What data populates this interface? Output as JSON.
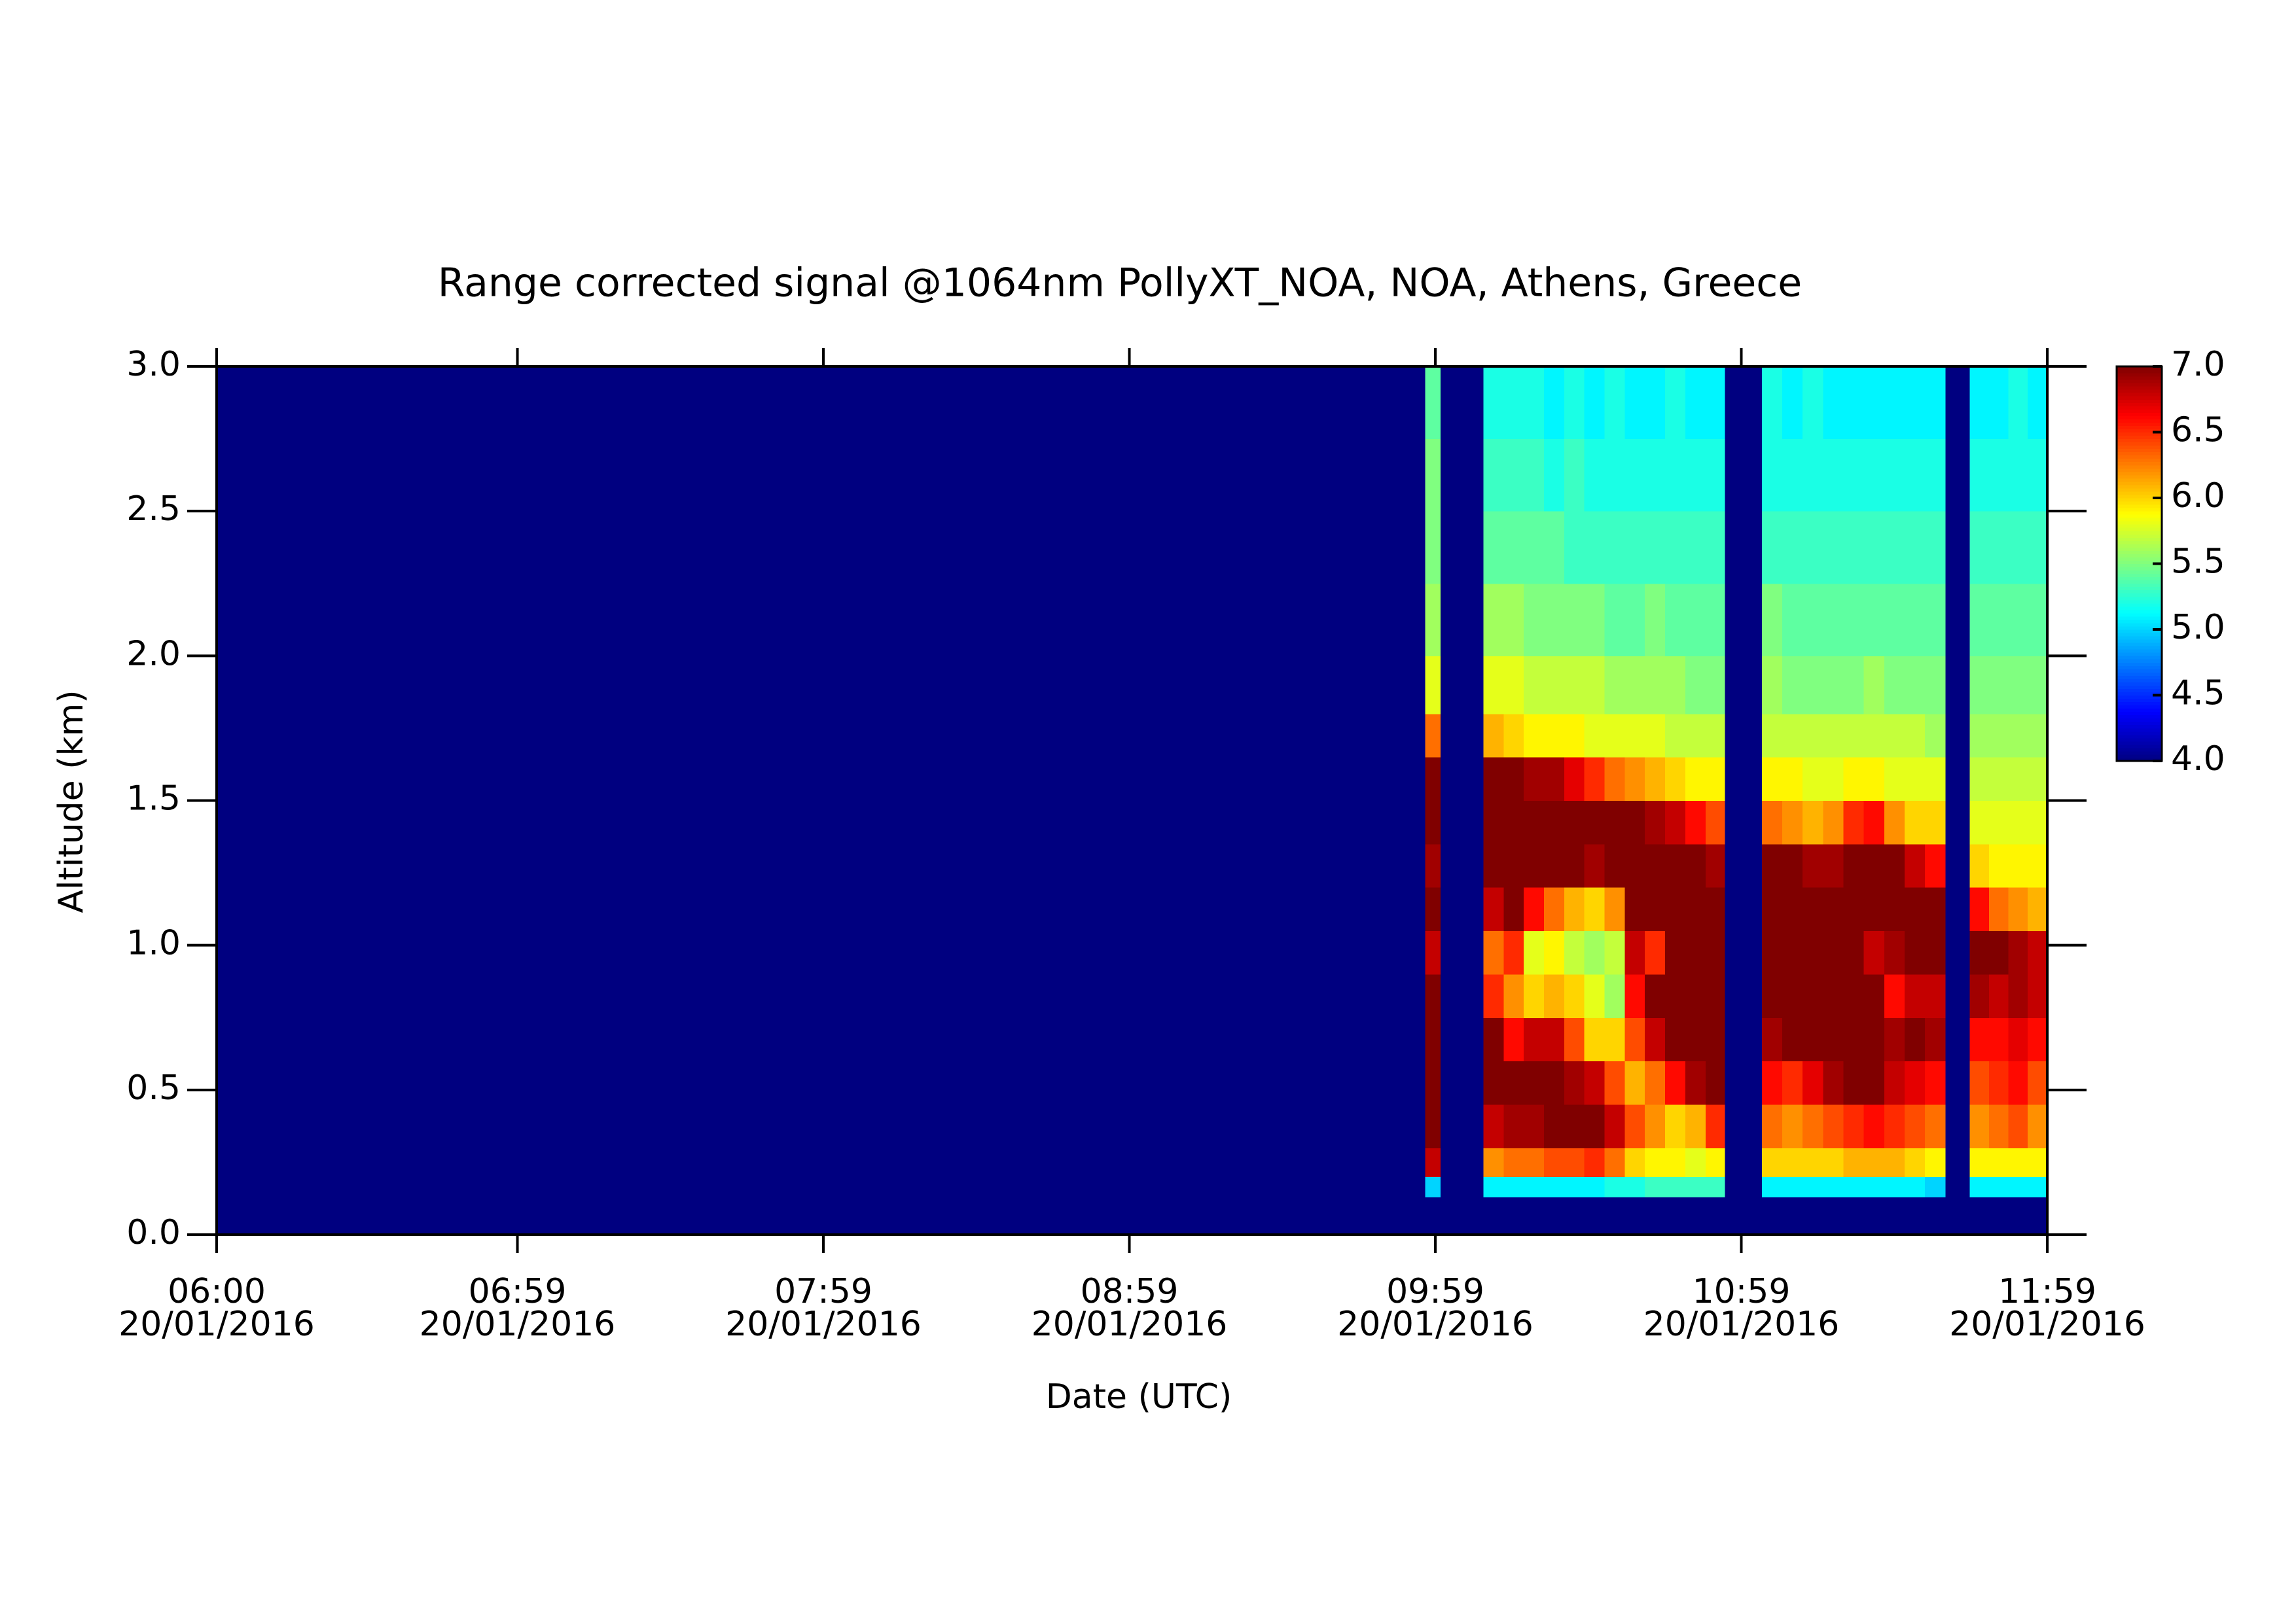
{
  "chart_data": {
    "type": "heatmap",
    "title": "Range corrected signal @1064nm  PollyXT_NOA, NOA, Athens, Greece",
    "xlabel": "Date (UTC)",
    "ylabel": "Altitude (km)",
    "colorscale": "jet",
    "zlim": [
      4.0,
      7.0
    ],
    "colorbar_ticks": [
      {
        "value": 4.0,
        "label": "4.0"
      },
      {
        "value": 4.5,
        "label": "4.5"
      },
      {
        "value": 5.0,
        "label": "5.0"
      },
      {
        "value": 5.5,
        "label": "5.5"
      },
      {
        "value": 6.0,
        "label": "6.0"
      },
      {
        "value": 6.5,
        "label": "6.5"
      },
      {
        "value": 7.0,
        "label": "7.0"
      }
    ],
    "xlim": [
      6.0,
      11.983
    ],
    "xticks": [
      {
        "value": 6.0,
        "label": "06:00",
        "date": "20/01/2016"
      },
      {
        "value": 6.983,
        "label": "06:59",
        "date": "20/01/2016"
      },
      {
        "value": 7.983,
        "label": "07:59",
        "date": "20/01/2016"
      },
      {
        "value": 8.983,
        "label": "08:59",
        "date": "20/01/2016"
      },
      {
        "value": 9.983,
        "label": "09:59",
        "date": "20/01/2016"
      },
      {
        "value": 10.983,
        "label": "10:59",
        "date": "20/01/2016"
      },
      {
        "value": 11.983,
        "label": "11:59",
        "date": "20/01/2016"
      }
    ],
    "ylim": [
      0.0,
      3.0
    ],
    "yticks": [
      {
        "value": 0.0,
        "label": "0.0"
      },
      {
        "value": 0.5,
        "label": "0.5"
      },
      {
        "value": 1.0,
        "label": "1.0"
      },
      {
        "value": 1.5,
        "label": "1.5"
      },
      {
        "value": 2.0,
        "label": "2.0"
      },
      {
        "value": 2.5,
        "label": "2.5"
      },
      {
        "value": 3.0,
        "label": "3.0"
      }
    ],
    "x_edges": [
      6.0,
      9.95,
      10.0,
      10.14,
      10.206,
      10.272,
      10.338,
      10.404,
      10.47,
      10.536,
      10.602,
      10.668,
      10.734,
      10.8,
      10.866,
      10.93,
      11.05,
      11.117,
      11.183,
      11.25,
      11.317,
      11.383,
      11.45,
      11.517,
      11.583,
      11.65,
      11.73,
      11.793,
      11.856,
      11.919,
      11.983
    ],
    "y_edges": [
      0.0,
      0.13,
      0.2,
      0.3,
      0.45,
      0.6,
      0.75,
      0.9,
      1.05,
      1.2,
      1.35,
      1.5,
      1.65,
      1.8,
      2.0,
      2.25,
      2.5,
      2.75,
      3.0
    ],
    "values": [
      [
        4.0,
        4.0,
        4.0,
        4.0,
        4.0,
        4.0,
        4.0,
        4.0,
        4.0,
        4.0,
        4.0,
        4.0,
        4.0,
        4.0,
        4.0,
        4.0,
        4.0,
        4.0
      ],
      [
        4.0,
        5.0,
        6.8,
        7.0,
        7.0,
        7.0,
        7.0,
        6.8,
        7.0,
        6.9,
        7.0,
        7.0,
        6.3,
        5.8,
        5.6,
        5.5,
        5.5,
        5.4
      ],
      [
        4.0,
        4.0,
        4.0,
        4.0,
        4.0,
        4.0,
        4.0,
        4.0,
        4.0,
        4.0,
        4.0,
        4.0,
        4.0,
        4.0,
        4.0,
        4.0,
        4.0,
        4.0
      ],
      [
        4.0,
        5.1,
        6.2,
        6.8,
        7.0,
        7.0,
        6.5,
        6.3,
        6.8,
        7.0,
        7.0,
        7.0,
        6.1,
        5.8,
        5.6,
        5.4,
        5.3,
        5.2
      ],
      [
        4.0,
        5.1,
        6.3,
        6.9,
        7.0,
        6.6,
        6.2,
        6.5,
        7.0,
        7.0,
        7.0,
        7.0,
        6.0,
        5.8,
        5.6,
        5.4,
        5.3,
        5.2
      ],
      [
        4.0,
        5.1,
        6.3,
        6.9,
        7.0,
        6.8,
        6.0,
        5.8,
        6.6,
        7.0,
        7.0,
        6.9,
        5.9,
        5.7,
        5.5,
        5.4,
        5.3,
        5.2
      ],
      [
        4.0,
        5.1,
        6.4,
        7.0,
        7.0,
        6.8,
        6.1,
        5.9,
        6.3,
        7.0,
        7.0,
        6.9,
        5.9,
        5.7,
        5.5,
        5.4,
        5.2,
        5.1
      ],
      [
        4.0,
        5.1,
        6.4,
        7.0,
        6.9,
        6.4,
        6.0,
        5.7,
        6.1,
        7.0,
        7.0,
        6.7,
        5.9,
        5.7,
        5.5,
        5.3,
        5.3,
        5.2
      ],
      [
        4.0,
        5.1,
        6.5,
        7.0,
        6.8,
        6.0,
        5.8,
        5.6,
        6.0,
        6.9,
        7.0,
        6.5,
        5.8,
        5.7,
        5.5,
        5.3,
        5.2,
        5.1
      ],
      [
        4.0,
        5.2,
        6.3,
        6.8,
        6.4,
        6.0,
        5.6,
        5.7,
        6.2,
        7.0,
        7.0,
        6.3,
        5.8,
        5.6,
        5.4,
        5.3,
        5.2,
        5.2
      ],
      [
        4.0,
        5.2,
        6.0,
        6.4,
        6.1,
        6.4,
        6.6,
        6.8,
        7.0,
        7.0,
        7.0,
        6.2,
        5.8,
        5.6,
        5.4,
        5.3,
        5.2,
        5.1
      ],
      [
        4.0,
        5.3,
        5.9,
        6.2,
        6.3,
        6.8,
        7.0,
        6.5,
        7.0,
        7.0,
        6.9,
        6.1,
        5.8,
        5.6,
        5.5,
        5.3,
        5.2,
        5.1
      ],
      [
        4.0,
        5.3,
        5.9,
        6.0,
        6.6,
        7.0,
        7.0,
        7.0,
        7.0,
        7.0,
        6.8,
        6.0,
        5.7,
        5.6,
        5.4,
        5.3,
        5.2,
        5.2
      ],
      [
        4.0,
        5.3,
        5.8,
        6.1,
        6.9,
        7.0,
        7.0,
        7.0,
        7.0,
        7.0,
        6.6,
        5.9,
        5.7,
        5.5,
        5.4,
        5.3,
        5.2,
        5.1
      ],
      [
        4.0,
        5.3,
        5.9,
        6.5,
        7.0,
        7.0,
        7.0,
        7.0,
        7.0,
        6.9,
        6.4,
        5.9,
        5.7,
        5.5,
        5.4,
        5.3,
        5.2,
        5.1
      ],
      [
        4.0,
        4.0,
        4.0,
        4.0,
        4.0,
        4.0,
        4.0,
        4.0,
        4.0,
        4.0,
        4.0,
        4.0,
        4.0,
        4.0,
        4.0,
        4.0,
        4.0,
        4.0
      ],
      [
        4.0,
        5.1,
        6.0,
        6.3,
        6.6,
        6.9,
        7.0,
        7.0,
        7.0,
        7.0,
        6.3,
        5.9,
        5.7,
        5.6,
        5.5,
        5.3,
        5.2,
        5.2
      ],
      [
        4.0,
        5.1,
        6.0,
        6.2,
        6.5,
        7.0,
        7.0,
        7.0,
        7.0,
        7.0,
        6.2,
        5.9,
        5.7,
        5.5,
        5.4,
        5.3,
        5.2,
        5.1
      ],
      [
        4.0,
        5.1,
        6.0,
        6.3,
        6.7,
        7.0,
        7.0,
        7.0,
        7.0,
        6.9,
        6.1,
        5.8,
        5.7,
        5.5,
        5.4,
        5.3,
        5.2,
        5.2
      ],
      [
        4.0,
        5.1,
        6.0,
        6.4,
        6.9,
        7.0,
        7.0,
        7.0,
        7.0,
        6.9,
        6.2,
        5.8,
        5.7,
        5.5,
        5.4,
        5.3,
        5.2,
        5.1
      ],
      [
        4.0,
        5.1,
        6.1,
        6.5,
        7.0,
        7.0,
        7.0,
        7.0,
        7.0,
        7.0,
        6.5,
        5.9,
        5.7,
        5.5,
        5.4,
        5.3,
        5.2,
        5.1
      ],
      [
        4.0,
        5.1,
        6.1,
        6.6,
        7.0,
        7.0,
        7.0,
        6.8,
        7.0,
        7.0,
        6.6,
        5.9,
        5.7,
        5.6,
        5.4,
        5.3,
        5.2,
        5.1
      ],
      [
        4.0,
        5.1,
        6.1,
        6.5,
        6.8,
        6.9,
        6.6,
        6.9,
        7.0,
        7.0,
        6.2,
        5.8,
        5.7,
        5.5,
        5.4,
        5.3,
        5.2,
        5.1
      ],
      [
        4.0,
        5.1,
        6.0,
        6.4,
        6.7,
        7.0,
        6.8,
        7.0,
        7.0,
        6.8,
        6.0,
        5.8,
        5.7,
        5.5,
        5.4,
        5.3,
        5.2,
        5.1
      ],
      [
        4.0,
        5.0,
        5.9,
        6.3,
        6.6,
        6.9,
        6.8,
        7.0,
        7.0,
        6.6,
        6.0,
        5.8,
        5.6,
        5.5,
        5.4,
        5.3,
        5.2,
        5.1
      ],
      [
        4.0,
        4.0,
        4.0,
        4.0,
        4.0,
        4.0,
        4.0,
        4.0,
        4.0,
        4.0,
        4.0,
        4.0,
        4.0,
        4.0,
        4.0,
        4.0,
        4.0,
        4.0
      ],
      [
        4.0,
        5.1,
        5.9,
        6.2,
        6.4,
        6.6,
        6.9,
        7.0,
        6.6,
        6.0,
        5.8,
        5.7,
        5.6,
        5.5,
        5.4,
        5.3,
        5.2,
        5.1
      ],
      [
        4.0,
        5.1,
        5.9,
        6.3,
        6.5,
        6.6,
        6.8,
        7.0,
        6.3,
        5.9,
        5.8,
        5.7,
        5.6,
        5.5,
        5.4,
        5.3,
        5.2,
        5.1
      ],
      [
        4.0,
        5.1,
        5.9,
        6.4,
        6.6,
        6.7,
        6.9,
        6.9,
        6.2,
        5.9,
        5.8,
        5.7,
        5.6,
        5.5,
        5.4,
        5.3,
        5.2,
        5.2
      ],
      [
        4.0,
        5.1,
        5.9,
        6.2,
        6.4,
        6.6,
        6.8,
        6.8,
        6.1,
        5.9,
        5.8,
        5.7,
        5.6,
        5.5,
        5.4,
        5.3,
        5.2,
        5.1
      ]
    ]
  }
}
